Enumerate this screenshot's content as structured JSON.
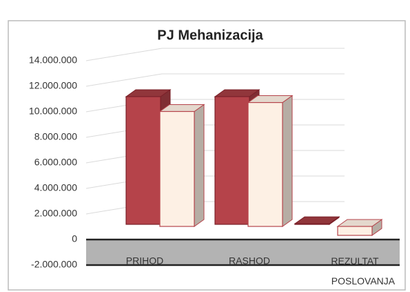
{
  "chart_data": {
    "type": "bar3d",
    "title": "PJ Mehanizacija",
    "categories": [
      "PRIHOD",
      "RASHOD",
      "REZULTAT POSLOVANJA"
    ],
    "series": [
      {
        "color": "#b5434a",
        "values": [
          10000000,
          10000000,
          50000
        ]
      },
      {
        "color": "#fdf0e4",
        "values": [
          9000000,
          9700000,
          -700000
        ]
      }
    ],
    "ylim": [
      -2000000,
      14000000
    ],
    "yticks": [
      {
        "value": -2000000,
        "label": "-2.000.000"
      },
      0,
      {
        "value": 2000000,
        "label": "2.000.000"
      },
      {
        "value": 4000000,
        "label": "4.000.000"
      },
      {
        "value": 6000000,
        "label": "6.000.000"
      },
      {
        "value": 8000000,
        "label": "8.000.000"
      },
      {
        "value": 10000000,
        "label": "10.000.000"
      },
      {
        "value": 12000000,
        "label": "12.000.000"
      },
      {
        "value": 14000000,
        "label": "14.000.000"
      }
    ],
    "grid": true
  }
}
